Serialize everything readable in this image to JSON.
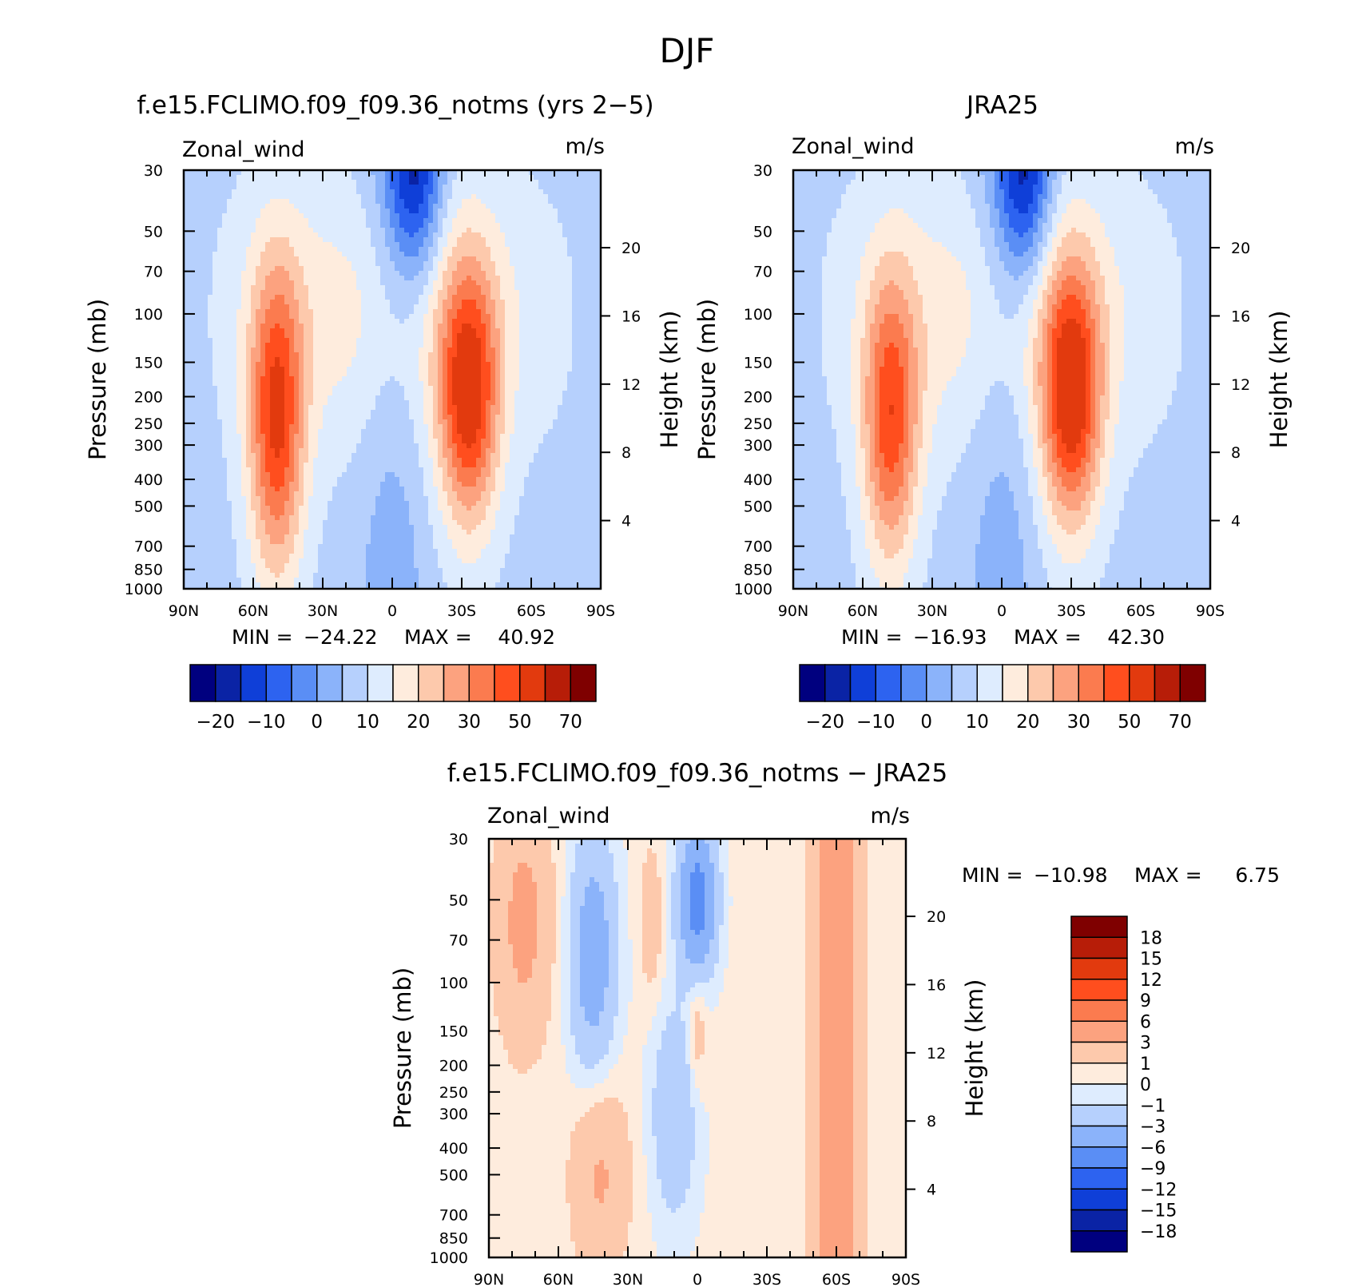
{
  "page_title": "DJF",
  "palette_main": [
    "#00007f",
    "#0a23a5",
    "#0f3fd8",
    "#2d63f0",
    "#5a8ef5",
    "#8bb3fa",
    "#b6d0fd",
    "#deecfe",
    "#feecdd",
    "#fdc9ac",
    "#fca27f",
    "#fb7b4f",
    "#ff4e1e",
    "#e23a0e",
    "#b71d08",
    "#7f0000"
  ],
  "palette_diff": [
    "#00007f",
    "#0a23a5",
    "#0f3fd8",
    "#2d63f0",
    "#5a8ef5",
    "#8bb3fa",
    "#b6d0fd",
    "#deecfe",
    "#feecdd",
    "#fdc9ac",
    "#fca27f",
    "#fb7b4f",
    "#ff4e1e",
    "#e23a0e",
    "#b71d08",
    "#7f0000"
  ],
  "chart_data": [
    {
      "type": "heatmap",
      "title": "f.e15.FCLIMO.f09_f09.36_notms (yrs 2−5)",
      "left_label": "Zonal_wind",
      "right_label": "m/s",
      "ylabel": "Pressure (mb)",
      "ylabel2": "Height (km)",
      "xticks": [
        "90N",
        "60N",
        "30N",
        "0",
        "30S",
        "60S",
        "90S"
      ],
      "yticks": [
        "30",
        "50",
        "70",
        "100",
        "150",
        "200",
        "250",
        "300",
        "400",
        "500",
        "700",
        "850",
        "1000"
      ],
      "yticks2": [
        "20",
        "16",
        "12",
        "8",
        "4"
      ],
      "xlim": [
        -90,
        90
      ],
      "ylim": [
        1000,
        30
      ],
      "stats": {
        "min_label": "MIN =",
        "min": "−24.22",
        "max_label": "MAX =",
        "max": "40.92"
      },
      "colorbar_labels": [
        "−20",
        "−10",
        "0",
        "10",
        "20",
        "30",
        "50",
        "70"
      ],
      "jets": [
        {
          "lat": -33,
          "p": 200,
          "max": 40.9,
          "w": 13,
          "hp": 1.1
        },
        {
          "lat": 50,
          "p": 250,
          "max": 39,
          "w": 12,
          "hp": 1.3
        }
      ],
      "min": -24.22,
      "max": 40.92
    },
    {
      "type": "heatmap",
      "title": "JRA25",
      "left_label": "Zonal_wind",
      "right_label": "m/s",
      "ylabel": "Pressure (mb)",
      "ylabel2": "Height (km)",
      "xticks": [
        "90N",
        "60N",
        "30N",
        "0",
        "30S",
        "60S",
        "90S"
      ],
      "yticks": [
        "30",
        "50",
        "70",
        "100",
        "150",
        "200",
        "250",
        "300",
        "400",
        "500",
        "700",
        "850",
        "1000"
      ],
      "yticks2": [
        "20",
        "16",
        "12",
        "8",
        "4"
      ],
      "xlim": [
        -90,
        90
      ],
      "ylim": [
        1000,
        30
      ],
      "stats": {
        "min_label": "MIN =",
        "min": "−16.93",
        "max_label": "MAX =",
        "max": "42.30"
      },
      "colorbar_labels": [
        "−20",
        "−10",
        "0",
        "10",
        "20",
        "30",
        "50",
        "70"
      ],
      "jets": [
        {
          "lat": -30,
          "p": 200,
          "max": 42.3,
          "w": 13,
          "hp": 1.1
        },
        {
          "lat": 48,
          "p": 250,
          "max": 36,
          "w": 12,
          "hp": 1.2
        }
      ],
      "min": -16.93,
      "max": 42.3
    },
    {
      "type": "heatmap",
      "title": "f.e15.FCLIMO.f09_f09.36_notms − JRA25",
      "left_label": "Zonal_wind",
      "right_label": "m/s",
      "ylabel": "Pressure (mb)",
      "ylabel2": "Height (km)",
      "xticks": [
        "90N",
        "60N",
        "30N",
        "0",
        "30S",
        "60S",
        "90S"
      ],
      "yticks": [
        "30",
        "50",
        "70",
        "100",
        "150",
        "200",
        "250",
        "300",
        "400",
        "500",
        "700",
        "850",
        "1000"
      ],
      "yticks2": [
        "20",
        "16",
        "12",
        "8",
        "4"
      ],
      "xlim": [
        -90,
        90
      ],
      "ylim": [
        1000,
        30
      ],
      "stats": {
        "min_label": "MIN =",
        "min": "−10.98",
        "max_label": "MAX =",
        "max": "6.75"
      },
      "colorbar_labels": [
        "18",
        "15",
        "12",
        "9",
        "6",
        "3",
        "1",
        "0",
        "−1",
        "−3",
        "−6",
        "−9",
        "−12",
        "−15",
        "−18"
      ],
      "min": -10.98,
      "max": 6.75
    }
  ]
}
